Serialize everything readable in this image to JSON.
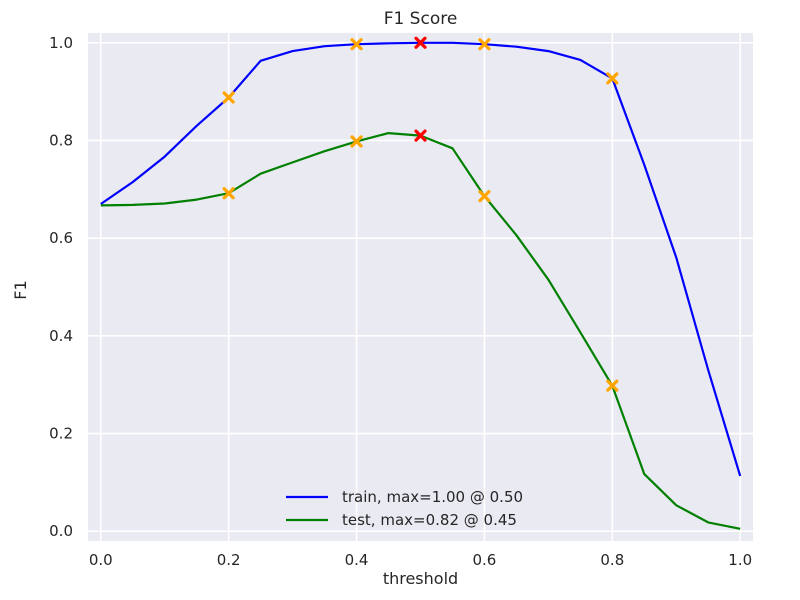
{
  "chart_data": {
    "type": "line",
    "title": "F1 Score",
    "xlabel": "threshold",
    "ylabel": "F1",
    "xlim": [
      -0.02,
      1.02
    ],
    "ylim": [
      -0.02,
      1.02
    ],
    "xticks": [
      0.0,
      0.2,
      0.4,
      0.6,
      0.8,
      1.0
    ],
    "xtick_labels": [
      "0.0",
      "0.2",
      "0.4",
      "0.6",
      "0.8",
      "1.0"
    ],
    "yticks": [
      0.0,
      0.2,
      0.4,
      0.6,
      0.8,
      1.0
    ],
    "ytick_labels": [
      "0.0",
      "0.2",
      "0.4",
      "0.6",
      "0.8",
      "1.0"
    ],
    "grid": true,
    "legend_position": "bottom-center",
    "background_color": "#eaeaf2",
    "x": [
      0.0,
      0.05,
      0.1,
      0.15,
      0.2,
      0.25,
      0.3,
      0.35,
      0.4,
      0.45,
      0.5,
      0.55,
      0.6,
      0.65,
      0.7,
      0.75,
      0.8,
      0.85,
      0.9,
      0.95,
      1.0
    ],
    "series": [
      {
        "name": "train, max=1.00 @ 0.50",
        "color": "#0000ff",
        "values": [
          0.67,
          0.715,
          0.767,
          0.83,
          0.888,
          0.963,
          0.983,
          0.993,
          0.997,
          0.999,
          1.0,
          1.0,
          0.997,
          0.992,
          0.983,
          0.965,
          0.927,
          0.75,
          0.56,
          0.33,
          0.113
        ]
      },
      {
        "name": "test, max=0.82 @ 0.45",
        "color": "#008000",
        "values": [
          0.667,
          0.668,
          0.671,
          0.679,
          0.692,
          0.732,
          0.755,
          0.778,
          0.798,
          0.815,
          0.81,
          0.784,
          0.686,
          0.606,
          0.515,
          0.407,
          0.298,
          0.117,
          0.053,
          0.018,
          0.005
        ]
      }
    ],
    "markers": [
      {
        "series": "train, max=1.00 @ 0.50",
        "x": 0.2,
        "y": 0.888,
        "color": "#ffa500"
      },
      {
        "series": "train, max=1.00 @ 0.50",
        "x": 0.4,
        "y": 0.997,
        "color": "#ffa500"
      },
      {
        "series": "train, max=1.00 @ 0.50",
        "x": 0.5,
        "y": 1.0,
        "color": "#ff0000"
      },
      {
        "series": "train, max=1.00 @ 0.50",
        "x": 0.6,
        "y": 0.997,
        "color": "#ffa500"
      },
      {
        "series": "train, max=1.00 @ 0.50",
        "x": 0.8,
        "y": 0.927,
        "color": "#ffa500"
      },
      {
        "series": "test, max=0.82 @ 0.45",
        "x": 0.2,
        "y": 0.692,
        "color": "#ffa500"
      },
      {
        "series": "test, max=0.82 @ 0.45",
        "x": 0.4,
        "y": 0.798,
        "color": "#ffa500"
      },
      {
        "series": "test, max=0.82 @ 0.45",
        "x": 0.5,
        "y": 0.81,
        "color": "#ff0000"
      },
      {
        "series": "test, max=0.82 @ 0.45",
        "x": 0.6,
        "y": 0.686,
        "color": "#ffa500"
      },
      {
        "series": "test, max=0.82 @ 0.45",
        "x": 0.8,
        "y": 0.298,
        "color": "#ffa500"
      }
    ]
  }
}
